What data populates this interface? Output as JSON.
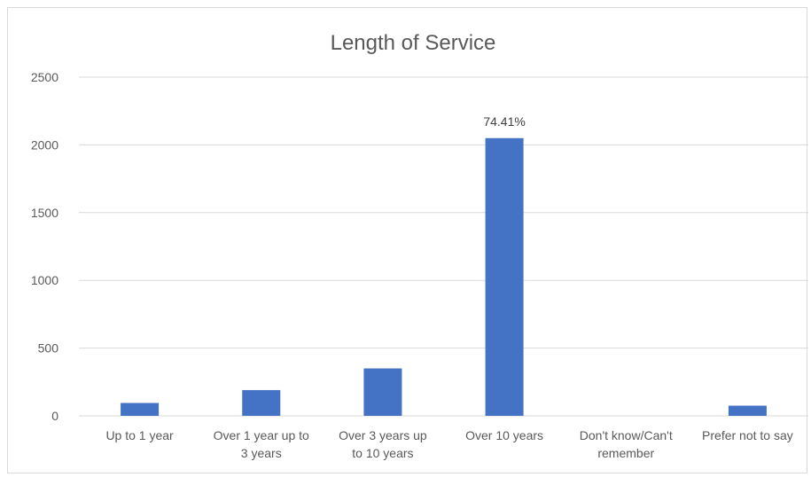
{
  "chart_data": {
    "type": "bar",
    "title": "Length of Service",
    "categories": [
      [
        "Up to 1 year"
      ],
      [
        "Over 1 year up to",
        "3 years"
      ],
      [
        "Over 3 years up",
        "to 10 years"
      ],
      [
        "Over 10 years"
      ],
      [
        "Don't know/Can't",
        "remember"
      ],
      [
        "Prefer not to say"
      ]
    ],
    "values": [
      95,
      190,
      350,
      2050,
      0,
      75
    ],
    "data_labels": [
      "",
      "",
      "",
      "74.41%",
      "",
      ""
    ],
    "ylim": [
      0,
      2500
    ],
    "yticks": [
      0,
      500,
      1000,
      1500,
      2000,
      2500
    ],
    "xlabel": "",
    "ylabel": "",
    "grid": true,
    "legend": "none",
    "bar_color": "#4472C4"
  }
}
